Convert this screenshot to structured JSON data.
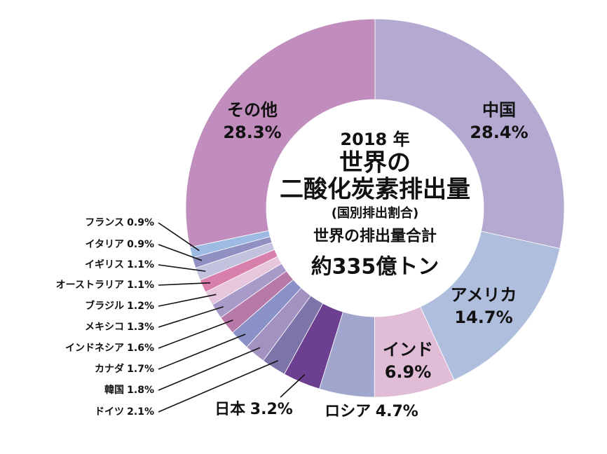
{
  "chart_data": {
    "type": "donut",
    "year": "2018 年",
    "title_line1": "世界の",
    "title_line2": "二酸化炭素排出量",
    "subtitle": "(国別排出割合)",
    "total_label": "世界の排出量合計",
    "total": "約335億トン",
    "categories": [
      "中国",
      "アメリカ",
      "インド",
      "ロシア",
      "日本",
      "ドイツ",
      "韓国",
      "カナダ",
      "インドネシア",
      "メキシコ",
      "ブラジル",
      "オーストラリア",
      "イギリス",
      "イタリア",
      "フランス",
      "その他"
    ],
    "values": [
      28.4,
      14.7,
      6.9,
      4.7,
      3.2,
      2.1,
      1.8,
      1.7,
      1.6,
      1.3,
      1.2,
      1.1,
      1.1,
      0.9,
      0.9,
      28.3
    ],
    "value_labels": [
      "28.4%",
      "14.7%",
      "6.9%",
      "4.7%",
      "3.2%",
      "2.1%",
      "1.8%",
      "1.7%",
      "1.6%",
      "1.3%",
      "1.2%",
      "1.1%",
      "1.1%",
      "0.9%",
      "0.9%",
      "28.3%"
    ],
    "colors": [
      "#b4a9d1",
      "#b0bede",
      "#e0bcd7",
      "#a0a6cd",
      "#6c3f90",
      "#7d74aa",
      "#a291c1",
      "#8a91c6",
      "#b77aa8",
      "#a99bc9",
      "#e5c6dd",
      "#d97fac",
      "#c2c2de",
      "#9190c2",
      "#9dbbe2",
      "#c08dbd"
    ]
  }
}
